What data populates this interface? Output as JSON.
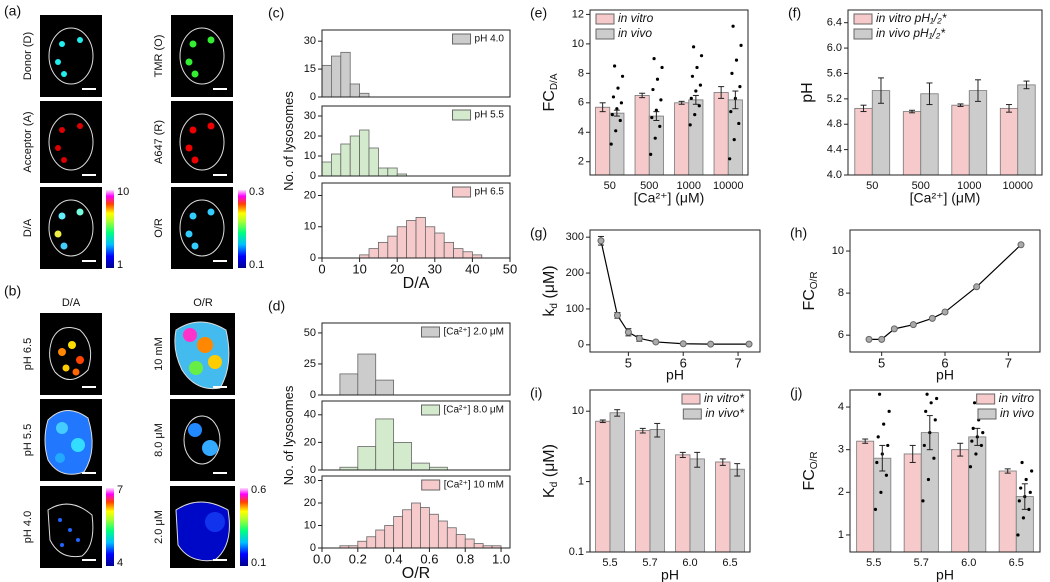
{
  "images": {
    "a": {
      "panel": "(a)",
      "labels": [
        "Donor (D)",
        "TMR (O)",
        "Acceptor (A)",
        "A647 (R)",
        "D/A",
        "O/R"
      ],
      "colorbars": [
        [
          10,
          1
        ],
        [
          0.3,
          0.1
        ]
      ]
    },
    "b": {
      "panel": "(b)",
      "columns": [
        "D/A",
        "O/R"
      ],
      "rows": [
        [
          "pH 6.5",
          "10 mM"
        ],
        [
          "pH 5.5",
          "8.0 μM"
        ],
        [
          "pH 4.0",
          "2.0 μM"
        ]
      ],
      "colorbars": [
        [
          7,
          4
        ],
        [
          0.6,
          0.1
        ]
      ]
    }
  },
  "chart_data": [
    {
      "type": "histogram",
      "panel": "(c)",
      "legend": "upper right",
      "xlim": [
        0,
        50
      ],
      "ylim": [
        0,
        36
      ],
      "yticks": [
        0,
        15,
        30
      ],
      "bins": [
        0,
        2.5,
        5,
        7.5,
        10,
        12.5
      ],
      "series": [
        {
          "name": "pH 4.0",
          "color": "#cccccc",
          "values": [
            17,
            22,
            24,
            7,
            2
          ]
        }
      ]
    },
    {
      "type": "histogram",
      "legend": "upper right",
      "ylabel": "No. of lysosomes",
      "xlim": [
        0,
        50
      ],
      "ylim": [
        0,
        35
      ],
      "yticks": [
        0,
        10,
        20,
        30
      ],
      "bins": [
        0,
        2.5,
        5,
        7.5,
        10,
        12.5,
        15,
        17.5,
        20,
        22.5
      ],
      "series": [
        {
          "name": "pH 5.5",
          "color": "#d3ebcc",
          "values": [
            7,
            11,
            16,
            20,
            23,
            14,
            4,
            4,
            1
          ]
        }
      ]
    },
    {
      "type": "histogram",
      "legend": "upper right",
      "xlabel": "D/A",
      "xlim": [
        0,
        50
      ],
      "xticks": [
        0,
        10,
        20,
        30,
        40,
        50
      ],
      "ylim": [
        0,
        24
      ],
      "yticks": [
        0,
        10,
        20
      ],
      "bins": [
        10,
        12.5,
        15,
        17.5,
        20,
        22.5,
        25,
        27.5,
        30,
        32.5,
        35,
        37.5,
        40,
        42.5
      ],
      "series": [
        {
          "name": "pH 6.5",
          "color": "#f6c9cb",
          "values": [
            1,
            3,
            5,
            7,
            10,
            12,
            13,
            10,
            8,
            5,
            3,
            2,
            1
          ]
        }
      ]
    },
    {
      "type": "histogram",
      "panel": "(d)",
      "legend": "upper right",
      "xlim": [
        0,
        1.05
      ],
      "ylim": [
        0,
        58
      ],
      "yticks": [
        0,
        25,
        50
      ],
      "bins": [
        0.1,
        0.2,
        0.3,
        0.4
      ],
      "series": [
        {
          "name": "[Ca²⁺] 2.0 μM",
          "color": "#cccccc",
          "values": [
            17,
            33,
            12
          ]
        }
      ]
    },
    {
      "type": "histogram",
      "legend": "upper right",
      "ylabel": "No. of lysosomes",
      "xlim": [
        0,
        1.05
      ],
      "ylim": [
        0,
        50
      ],
      "yticks": [
        0,
        20,
        40
      ],
      "bins": [
        0.1,
        0.2,
        0.3,
        0.4,
        0.5,
        0.6,
        0.7
      ],
      "series": [
        {
          "name": "[Ca²⁺] 8.0 μM",
          "color": "#d3ebcc",
          "values": [
            2,
            17,
            37,
            20,
            5,
            2
          ]
        }
      ]
    },
    {
      "type": "histogram",
      "legend": "upper right",
      "xlabel": "O/R",
      "xlim": [
        0,
        1.05
      ],
      "xticks": [
        {
          "value": 0,
          "label": "0.0"
        },
        0.2,
        0.4,
        0.6,
        0.8,
        {
          "value": 1,
          "label": "1.0"
        }
      ],
      "ylim": [
        0,
        32
      ],
      "yticks": [
        0,
        10,
        20,
        30
      ],
      "bins": [
        0.1,
        0.15,
        0.2,
        0.25,
        0.3,
        0.35,
        0.4,
        0.45,
        0.5,
        0.55,
        0.6,
        0.65,
        0.7,
        0.75,
        0.8,
        0.85,
        0.9,
        0.95,
        1.0
      ],
      "series": [
        {
          "name": "[Ca²⁺] 10 mM",
          "color": "#f6c9cb",
          "values": [
            1,
            1,
            3,
            5,
            8,
            10,
            14,
            17,
            20,
            18,
            15,
            12,
            9,
            6,
            4,
            2,
            1,
            1
          ]
        }
      ]
    },
    {
      "type": "bar",
      "panel": "(e)",
      "legend": "upper left",
      "ylabel": "FC",
      "ylabel_sub": "D/A",
      "xlabel": "[Ca²⁺] (μM)",
      "categories": [
        "50",
        "500",
        "1000",
        "10000"
      ],
      "ylim": [
        1.1,
        12.3
      ],
      "yticks": [
        2,
        4,
        6,
        8,
        10,
        12
      ],
      "series": [
        {
          "name": "in vitro",
          "color": "#f6c9cb",
          "values": [
            5.7,
            6.5,
            6.0,
            6.7
          ],
          "errors": [
            0.3,
            0.15,
            0.1,
            0.4
          ]
        },
        {
          "name": "in vivo",
          "color": "#cccccc",
          "values": [
            5.3,
            5.1,
            6.2,
            6.2
          ],
          "errors": [
            0.2,
            0.3,
            0.3,
            0.6
          ],
          "points": [
            [
              3.2,
              4.1,
              4.8,
              5.2,
              5.6,
              6.0,
              6.4,
              7.0,
              7.8,
              8.5
            ],
            [
              2.5,
              3.6,
              4.4,
              5.0,
              5.5,
              6.2,
              6.9,
              7.6,
              8.4,
              9.0
            ],
            [
              4.5,
              5.2,
              5.8,
              6.3,
              6.8,
              7.2,
              7.8,
              8.4,
              9.2,
              9.8
            ],
            [
              2.2,
              3.5,
              4.6,
              5.4,
              6.3,
              7.1,
              8.0,
              8.9,
              9.9,
              11.2
            ]
          ]
        }
      ]
    },
    {
      "type": "bar",
      "panel": "(f)",
      "legend": "upper left",
      "ylabel": "pH",
      "xlabel": "[Ca²⁺] (μM)",
      "categories": [
        "50",
        "500",
        "1000",
        "10000"
      ],
      "ylim": [
        4.0,
        6.6
      ],
      "yticks": [
        {
          "value": 4,
          "label": "4.0"
        },
        4.4,
        4.8,
        5.2,
        5.6,
        {
          "value": 6,
          "label": "6.0"
        },
        6.4
      ],
      "series": [
        {
          "name": "in vitro pH₁/₂*",
          "color": "#f6c9cb",
          "values": [
            5.05,
            5.0,
            5.1,
            5.05
          ],
          "errors": [
            0.05,
            0.02,
            0.02,
            0.06
          ]
        },
        {
          "name": "in vivo pH₁/₂*",
          "color": "#cccccc",
          "values": [
            5.33,
            5.28,
            5.33,
            5.42
          ],
          "errors": [
            0.2,
            0.17,
            0.17,
            0.06
          ]
        }
      ]
    },
    {
      "type": "scatter",
      "panel": "(g)",
      "ylabel": "k",
      "ylabel_sub": "d",
      "ylabel_after": " (μM)",
      "xlabel": "pH",
      "xlim": [
        4.3,
        7.4
      ],
      "xticks": [
        5,
        6,
        7
      ],
      "ylim": [
        -20,
        320
      ],
      "yticks": [
        0,
        100,
        200,
        300
      ],
      "x": [
        4.5,
        4.8,
        5.0,
        5.2,
        5.5,
        6.0,
        6.5,
        7.2
      ],
      "values": [
        290,
        82,
        35,
        18,
        8,
        3,
        2,
        2
      ],
      "errors": [
        12,
        8,
        10,
        8,
        3,
        2,
        1,
        1
      ]
    },
    {
      "type": "scatter",
      "panel": "(h)",
      "ylabel": "FC",
      "ylabel_sub": "O/R",
      "xlabel": "pH",
      "xlim": [
        4.5,
        7.5
      ],
      "xticks": [
        5,
        6,
        7
      ],
      "ylim": [
        5.2,
        11
      ],
      "yticks": [
        6,
        8,
        10
      ],
      "x": [
        4.8,
        5.0,
        5.2,
        5.5,
        5.8,
        6.0,
        6.5,
        7.2
      ],
      "values": [
        5.8,
        5.8,
        6.3,
        6.5,
        6.8,
        7.1,
        8.3,
        10.3
      ]
    },
    {
      "type": "bar",
      "panel": "(i)",
      "legend": "upper right",
      "log": true,
      "ylabel": "K",
      "ylabel_sub": "d",
      "ylabel_after": " (μM)",
      "xlabel": "pH",
      "categories": [
        "5.5",
        "5.7",
        "6.0",
        "6.5"
      ],
      "ylim": [
        0.1,
        20
      ],
      "yticks": [
        0.1,
        1,
        10
      ],
      "series": [
        {
          "name": "in vitro*",
          "color": "#f6c9cb",
          "values": [
            7.2,
            5.3,
            2.4,
            1.9
          ],
          "errors": [
            0.3,
            0.4,
            0.2,
            0.2
          ]
        },
        {
          "name": "in vivo*",
          "color": "#cccccc",
          "values": [
            9.5,
            5.5,
            2.1,
            1.5
          ],
          "errors": [
            1.0,
            1.2,
            0.5,
            0.3
          ]
        }
      ]
    },
    {
      "type": "bar",
      "panel": "(j)",
      "legend": "upper right",
      "ylabel": "FC",
      "ylabel_sub": "O/R",
      "xlabel": "pH",
      "categories": [
        "5.5",
        "5.7",
        "6.0",
        "6.5"
      ],
      "ylim": [
        0.6,
        4.4
      ],
      "yticks": [
        1,
        2,
        3,
        4
      ],
      "series": [
        {
          "name": "in vitro",
          "color": "#f6c9cb",
          "values": [
            3.2,
            2.9,
            3.0,
            2.5
          ],
          "errors": [
            0.05,
            0.2,
            0.15,
            0.05
          ]
        },
        {
          "name": "in vivo",
          "color": "#cccccc",
          "values": [
            2.8,
            3.4,
            3.3,
            1.9
          ],
          "errors": [
            0.3,
            0.4,
            0.2,
            0.3
          ],
          "points": [
            [
              1.6,
              2.0,
              2.4,
              2.7,
              2.9,
              3.1,
              3.3,
              3.6,
              3.9,
              4.3
            ],
            [
              1.8,
              2.3,
              2.8,
              3.1,
              3.4,
              3.7,
              3.9,
              4.1,
              4.2,
              4.3
            ],
            [
              2.6,
              2.9,
              3.1,
              3.2,
              3.3,
              3.4,
              3.5,
              3.7,
              3.9,
              4.1
            ],
            [
              1.0,
              1.4,
              1.6,
              1.8,
              1.9,
              2.0,
              2.1,
              2.3,
              2.5,
              2.7
            ]
          ]
        }
      ]
    }
  ]
}
